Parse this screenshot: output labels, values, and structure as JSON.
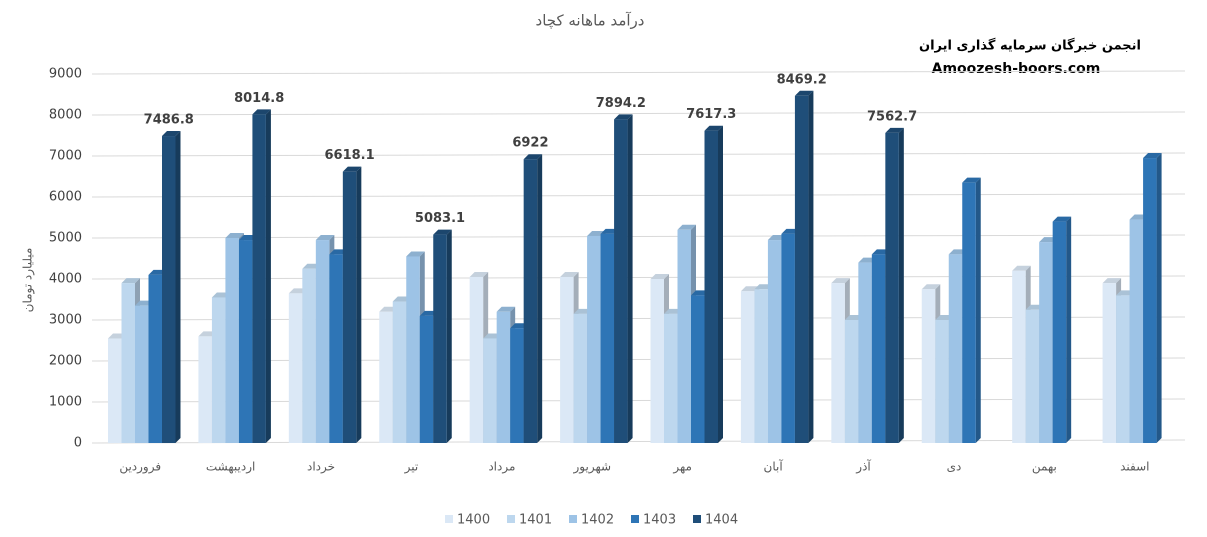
{
  "chart_data": {
    "type": "bar",
    "title": "درآمد ماهانه کچاد",
    "y_label": "میلیارد تومان",
    "annotations": [
      "انجمن خبرگان سرمایه گذاری ایران",
      "Amoozesh-boors.com"
    ],
    "categories": [
      "فروردین",
      "اردیبهشت",
      "خرداد",
      "تیر",
      "مرداد",
      "شهریور",
      "مهر",
      "آبان",
      "آذر",
      "دی",
      "بهمن",
      "اسفند"
    ],
    "series": [
      {
        "name": "1400",
        "color": "#dbe8f6",
        "values": [
          2550,
          2600,
          3650,
          3200,
          4050,
          4050,
          4000,
          3700,
          3900,
          3750,
          4200,
          3900
        ]
      },
      {
        "name": "1401",
        "color": "#bdd7ee",
        "values": [
          3900,
          3550,
          4250,
          3450,
          2550,
          3150,
          3150,
          3750,
          3000,
          3000,
          3250,
          3600
        ]
      },
      {
        "name": "1402",
        "color": "#9dc3e6",
        "values": [
          3350,
          5000,
          4950,
          4550,
          3200,
          5050,
          5200,
          4950,
          4400,
          4600,
          4900,
          5450
        ]
      },
      {
        "name": "1403",
        "color": "#2e75b6",
        "values": [
          4100,
          4950,
          4600,
          3100,
          2800,
          5100,
          3600,
          5100,
          4600,
          6350,
          5400,
          6950
        ]
      },
      {
        "name": "1404",
        "color": "#1f4e79",
        "values": [
          7486.8,
          8014.8,
          6618.1,
          5083.1,
          6922,
          7894.2,
          7617.3,
          8469.2,
          7562.7,
          null,
          null,
          null
        ]
      }
    ],
    "ylim": [
      0,
      9000
    ],
    "yticks": [
      0,
      1000,
      2000,
      3000,
      4000,
      5000,
      6000,
      7000,
      8000,
      9000
    ],
    "grid": true,
    "legend": "bottom",
    "data_labels_series": 4
  }
}
